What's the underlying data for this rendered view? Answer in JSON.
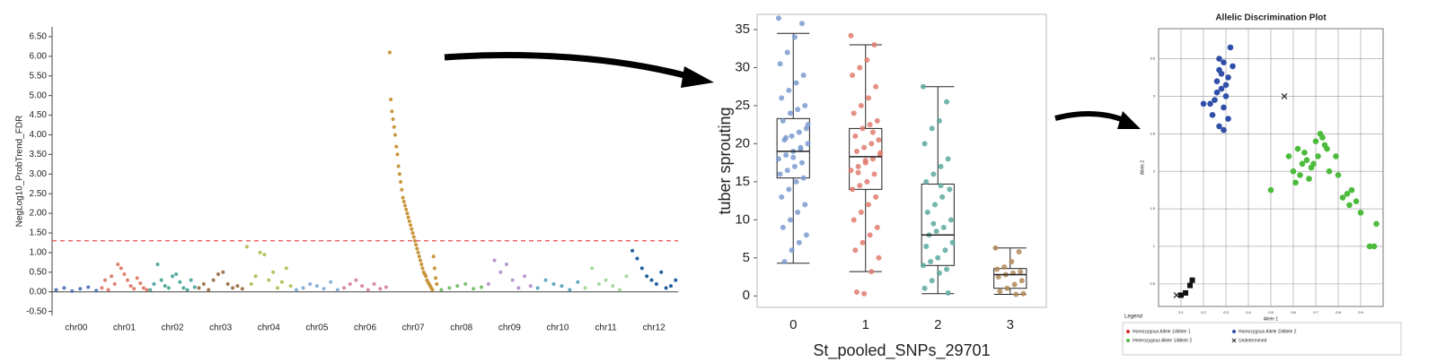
{
  "chart_data": [
    {
      "type": "manhattan",
      "y_label": "NegLog10_ProbTrend_FDR",
      "ylim": [
        -0.6,
        6.75
      ],
      "yticks": [
        {
          "value": -0.5,
          "label": "-0.50"
        },
        {
          "value": 0,
          "label": "0.00"
        },
        {
          "value": 0.5,
          "label": "0.50"
        },
        {
          "value": 1,
          "label": "1.00"
        },
        {
          "value": 1.5,
          "label": "1.50"
        },
        {
          "value": 2,
          "label": "2.00"
        },
        {
          "value": 2.5,
          "label": "2.50"
        },
        {
          "value": 3,
          "label": "3.00"
        },
        {
          "value": 3.5,
          "label": "3.50"
        },
        {
          "value": 4,
          "label": "4.00"
        },
        {
          "value": 4.5,
          "label": "4.50"
        },
        {
          "value": 5,
          "label": "5.00"
        },
        {
          "value": 5.5,
          "label": "5.50"
        },
        {
          "value": 6,
          "label": "6.00"
        },
        {
          "value": 6.5,
          "label": "6.50"
        }
      ],
      "threshold": 1.3,
      "threshold_color": "#e05050",
      "categories": [
        "chr00",
        "chr01",
        "chr02",
        "chr03",
        "chr04",
        "chr05",
        "chr06",
        "chr07",
        "chr08",
        "chr09",
        "chr10",
        "chr11",
        "chr12"
      ],
      "colors": [
        "#5a78b8",
        "#e08070",
        "#55aaa0",
        "#a07850",
        "#b8c060",
        "#8ab0d8",
        "#d88aa8",
        "#c8963c",
        "#7cc070",
        "#b898d0",
        "#60a8c0",
        "#a8d8a0",
        "#2060a0"
      ],
      "values": [
        [
          0.05,
          0.1,
          0.02,
          0.08,
          0.12,
          0.03
        ],
        [
          0.1,
          0.3,
          0.05,
          0.4,
          0.2,
          0.7,
          0.6,
          0.45,
          0.3,
          0.15,
          0.08,
          0.35,
          0.22,
          0.1,
          0.05
        ],
        [
          0.05,
          0.2,
          0.7,
          0.3,
          0.15,
          0.1,
          0.4,
          0.45,
          0.25,
          0.1,
          0.05,
          0.3,
          0.12
        ],
        [
          0.1,
          0.2,
          0.05,
          0.3,
          0.45,
          0.5,
          0.2,
          0.1,
          0.15,
          0.08
        ],
        [
          1.15,
          0.2,
          0.4,
          1.0,
          0.95,
          0.3,
          0.5,
          0.1,
          0.25,
          0.6,
          0.15
        ],
        [
          0.05,
          0.1,
          0.2,
          0.15,
          0.08,
          0.25,
          0.05
        ],
        [
          0.1,
          0.2,
          0.3,
          0.15,
          0.05,
          0.2,
          0.08,
          0.12
        ],
        [
          6.1,
          4.9,
          4.6,
          4.4,
          4.2,
          4.0,
          3.7,
          3.5,
          3.2,
          3.0,
          2.8,
          2.6,
          2.4,
          2.3,
          2.2,
          2.1,
          2.0,
          1.9,
          1.8,
          1.7,
          1.6,
          1.5,
          1.4,
          1.3,
          1.2,
          1.1,
          1.0,
          0.9,
          0.8,
          0.7,
          0.6,
          0.5,
          0.45,
          0.4,
          0.3,
          0.25,
          0.2,
          0.15,
          0.1,
          0.05,
          0.9,
          0.6,
          0.35,
          0.2
        ],
        [
          0.05,
          0.1,
          0.15,
          0.2,
          0.08,
          0.12
        ],
        [
          0.2,
          0.8,
          0.5,
          0.7,
          0.3,
          0.1,
          0.4,
          0.15
        ],
        [
          0.1,
          0.3,
          0.2,
          0.15,
          0.05,
          0.25
        ],
        [
          0.1,
          0.6,
          0.2,
          0.3,
          0.15,
          0.05,
          0.4
        ],
        [
          1.05,
          0.85,
          0.6,
          0.4,
          0.3,
          0.2,
          0.5,
          0.1,
          0.15,
          0.3
        ]
      ]
    },
    {
      "type": "box",
      "x_label": "St_pooled_SNPs_29701",
      "y_label": "tuber sprouting",
      "ylim": [
        -1.5,
        37
      ],
      "yticks": [
        0,
        5,
        10,
        15,
        20,
        25,
        30,
        35
      ],
      "categories": [
        "0",
        "1",
        "2",
        "3"
      ],
      "colors": [
        "#7b9bd0",
        "#e07b6f",
        "#5aa9a0",
        "#b38a5a"
      ],
      "boxes": [
        {
          "min": 4.3,
          "q1": 15.5,
          "median": 19,
          "q3": 23.3,
          "max": 34.5
        },
        {
          "min": 3.2,
          "q1": 14,
          "median": 18.3,
          "q3": 22,
          "max": 33
        },
        {
          "min": 0.3,
          "q1": 4,
          "median": 8,
          "q3": 14.7,
          "max": 27.5
        },
        {
          "min": 0.2,
          "q1": 1,
          "median": 2.8,
          "q3": 3.6,
          "max": 6.3
        }
      ],
      "points": [
        [
          36.5,
          35.8,
          34,
          32,
          30.5,
          29,
          28,
          27,
          26,
          25,
          24.5,
          24,
          23,
          22,
          21.5,
          21,
          20.5,
          20,
          19.5,
          19,
          18.5,
          18,
          17.5,
          17,
          16.5,
          16,
          15.5,
          15,
          14,
          13,
          12,
          11,
          10,
          9,
          8,
          7,
          6,
          4.5,
          22.5,
          19.2,
          18.2,
          20.8
        ],
        [
          34.2,
          33,
          31,
          30,
          29,
          27.5,
          26,
          25,
          24,
          23,
          22.5,
          22,
          21,
          20.5,
          20,
          19.5,
          19,
          18.5,
          18,
          17.5,
          17,
          16.5,
          16,
          15,
          14.5,
          14,
          13,
          12,
          11,
          10,
          9,
          8,
          7,
          6,
          5,
          3.2,
          0.3,
          0.5,
          18.8,
          21.5,
          17.8,
          16.2
        ],
        [
          27.5,
          25.5,
          23,
          22,
          20,
          18,
          17,
          16,
          15,
          14,
          13,
          12,
          11,
          10,
          9,
          8.5,
          8,
          7,
          6,
          5,
          4.5,
          4,
          3.5,
          3,
          2,
          1,
          0.4,
          14.5,
          9.5,
          6.5
        ],
        [
          6.3,
          5.8,
          4.5,
          3.8,
          3.5,
          3.2,
          3,
          2.8,
          2.5,
          2,
          1.5,
          1,
          0.6,
          0.3,
          0.2
        ]
      ]
    },
    {
      "type": "scatter",
      "title": "Allelic Discrimination Plot",
      "x_label": "Allele 1",
      "y_label": "Allele 2",
      "legend_title": "Legend",
      "xlim": [
        0,
        1
      ],
      "ylim": [
        0.2,
        3.9
      ],
      "xticks": [
        0.1,
        0.2,
        0.3,
        0.4,
        0.5,
        0.6,
        0.7,
        0.8,
        0.9
      ],
      "yticks": [
        0.5,
        1,
        1.5,
        2,
        2.5,
        3,
        3.5
      ],
      "series": [
        {
          "name": "Homozygous Allele 1/Allele 1",
          "color": "#e03030",
          "marker": "circle",
          "x": [],
          "values": []
        },
        {
          "name": "Homozygous Allele 2/Allele 2",
          "color": "#2f4fa8",
          "marker": "circle",
          "x": [
            0.2,
            0.24,
            0.26,
            0.27,
            0.28,
            0.29,
            0.3,
            0.31,
            0.32,
            0.25,
            0.27,
            0.29,
            0.3,
            0.23,
            0.28,
            0.31,
            0.26,
            0.33,
            0.29,
            0.27
          ],
          "values": [
            2.9,
            2.75,
            3.2,
            3.35,
            3.1,
            3.45,
            3.0,
            3.25,
            3.65,
            2.95,
            2.6,
            2.85,
            3.15,
            2.9,
            3.3,
            2.7,
            3.05,
            3.4,
            2.55,
            3.5
          ]
        },
        {
          "name": "Heterozygous Allele 1/Allele 2",
          "color": "#4cbb3c",
          "marker": "circle",
          "x": [
            0.5,
            0.58,
            0.6,
            0.62,
            0.64,
            0.66,
            0.68,
            0.7,
            0.72,
            0.74,
            0.63,
            0.67,
            0.71,
            0.69,
            0.65,
            0.61,
            0.76,
            0.8,
            0.84,
            0.86,
            0.88,
            0.9,
            0.85,
            0.82,
            0.94,
            0.96,
            0.97,
            0.73,
            0.75,
            0.79
          ],
          "values": [
            1.75,
            2.2,
            2.0,
            2.3,
            2.1,
            2.15,
            2.05,
            2.4,
            2.5,
            2.35,
            1.95,
            1.9,
            2.2,
            2.1,
            2.25,
            1.85,
            2.0,
            1.95,
            1.7,
            1.75,
            1.6,
            1.45,
            1.55,
            1.65,
            1.0,
            1.0,
            1.3,
            2.45,
            2.3,
            2.2
          ]
        },
        {
          "name": "Undetermined",
          "color": "#222222",
          "marker": "cross",
          "x": [
            0.08,
            0.56
          ],
          "values": [
            0.35,
            3.0
          ]
        },
        {
          "color": "#111111",
          "marker": "square",
          "x": [
            0.1,
            0.12,
            0.14,
            0.15
          ],
          "values": [
            0.35,
            0.38,
            0.48,
            0.55
          ]
        }
      ]
    }
  ]
}
